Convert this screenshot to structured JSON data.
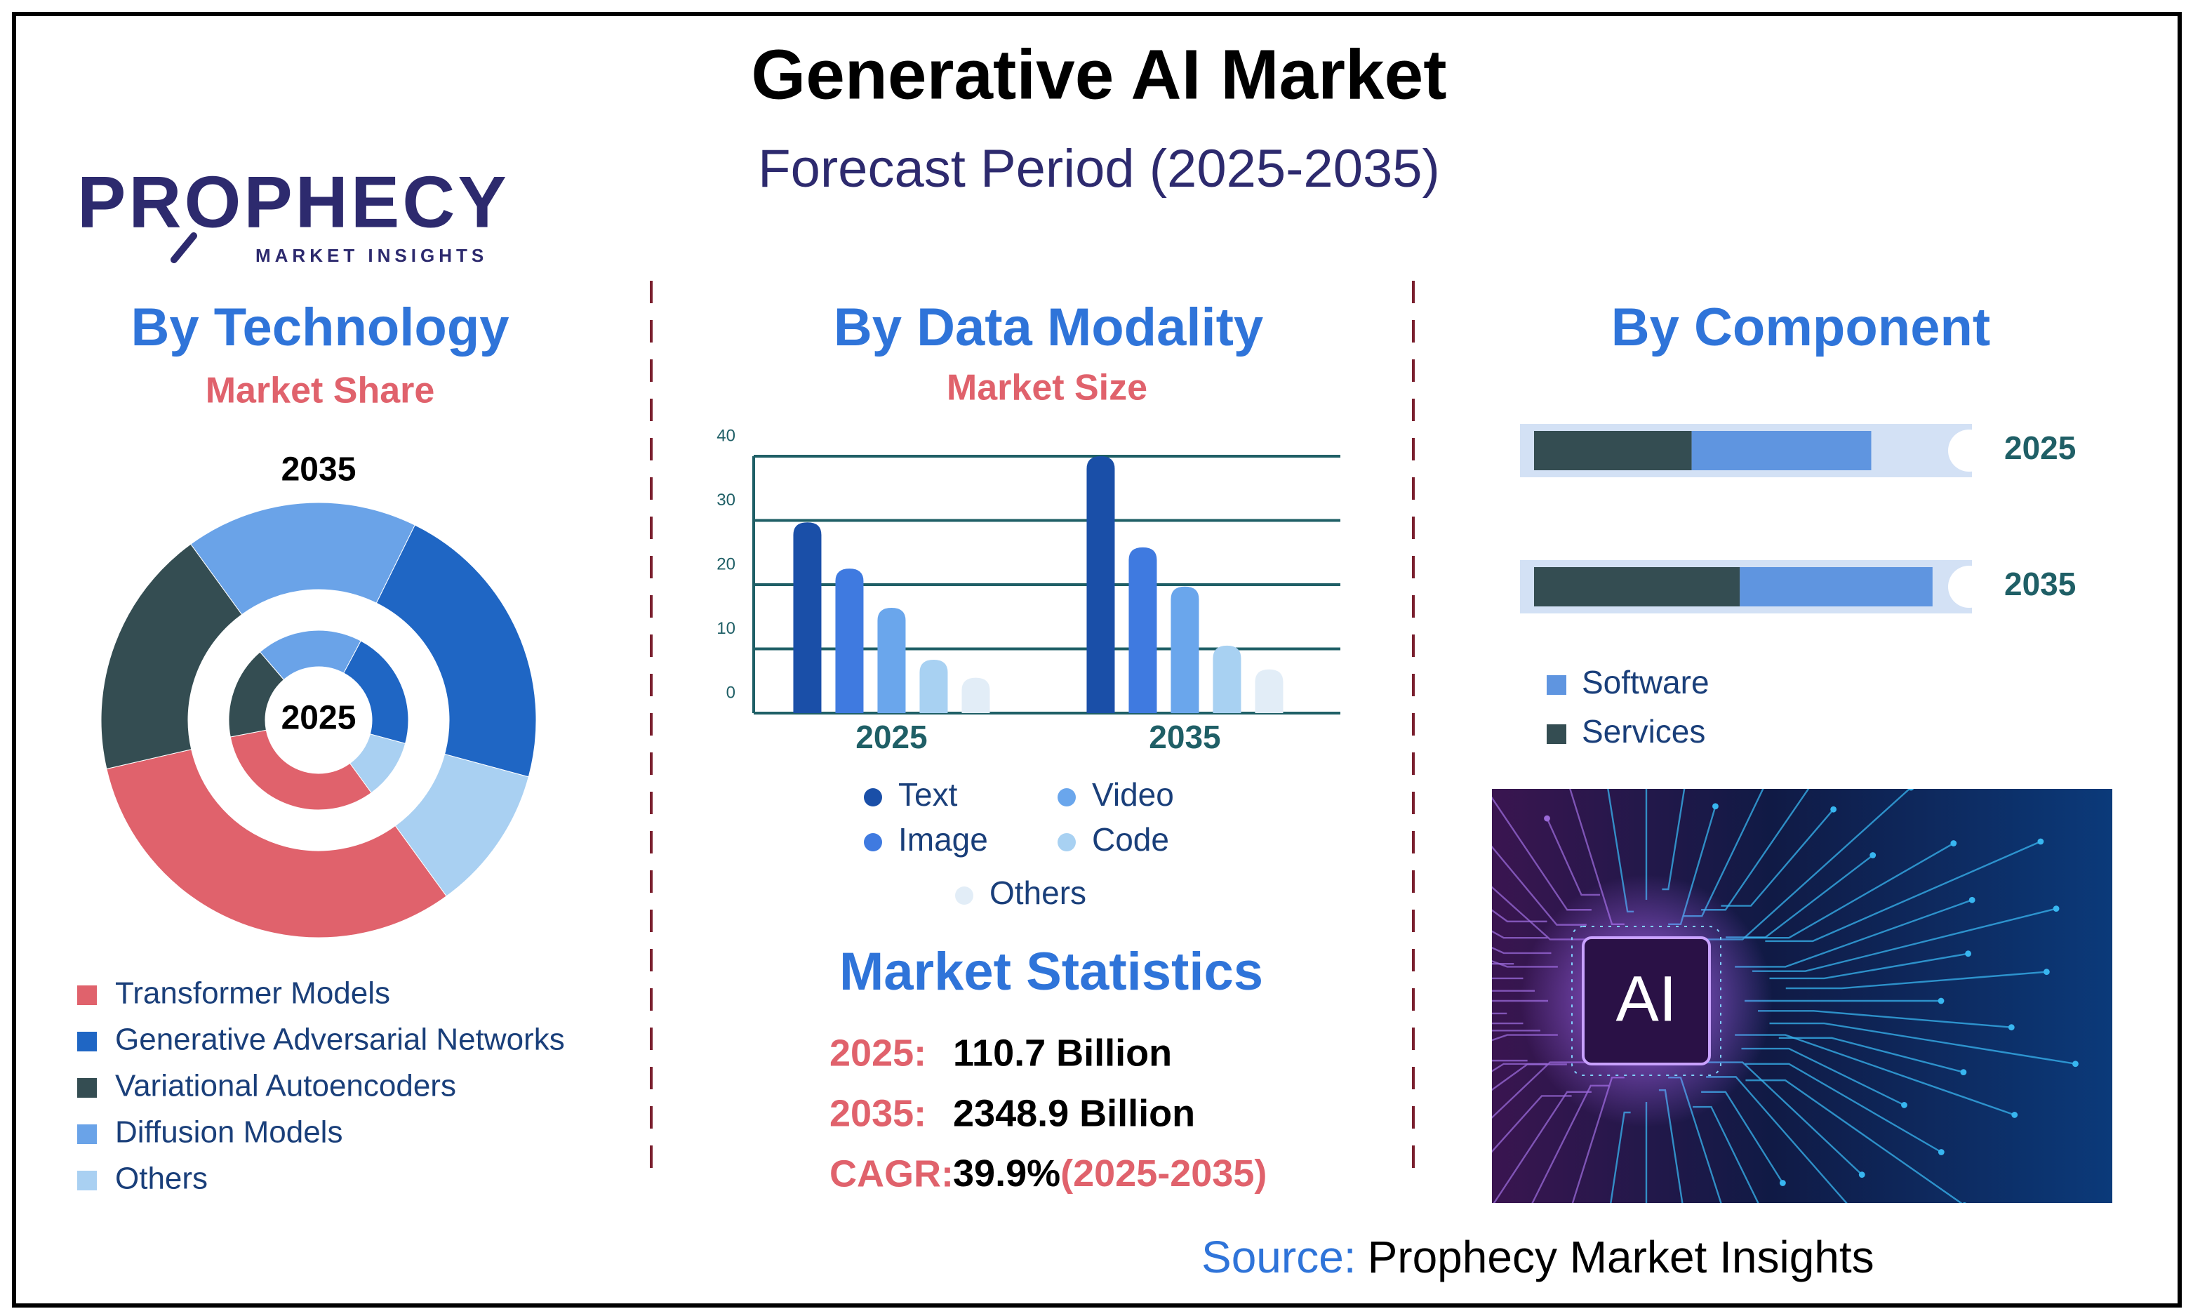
{
  "header": {
    "title": "Generative AI Market",
    "subtitle": "Forecast Period (2025-2035)"
  },
  "logo": {
    "name": "PROPHECY",
    "tagline": "MARKET INSIGHTS"
  },
  "chart_data": [
    {
      "type": "donut",
      "title": "By Technology",
      "subtitle": "Market Share",
      "categories": [
        "Transformer Models",
        "Generative Adversarial Networks",
        "Variational Autoencoders",
        "Diffusion Models",
        "Others"
      ],
      "colors": [
        "#e0626c",
        "#1f66c4",
        "#344d52",
        "#6aa3e8",
        "#a9d0f2"
      ],
      "series": [
        {
          "name": "2035",
          "values": [
            31.4,
            21.9,
            18.6,
            17.3,
            10.8
          ]
        },
        {
          "name": "2025",
          "values": [
            32.0,
            21.4,
            16.7,
            19.1,
            10.8
          ]
        }
      ]
    },
    {
      "type": "bar",
      "title": "By Data Modality",
      "subtitle": "Market Size",
      "categories": [
        "2025",
        "2035"
      ],
      "ylim": [
        0,
        40
      ],
      "yticks": [
        0,
        10,
        20,
        30,
        40
      ],
      "grid": true,
      "series": [
        {
          "name": "Text",
          "color": "#1a4fa8",
          "values": [
            29.7,
            40
          ]
        },
        {
          "name": "Image",
          "color": "#3f7ae0",
          "values": [
            22.5,
            25.8
          ]
        },
        {
          "name": "Video",
          "color": "#6aa6ec",
          "values": [
            16.4,
            19.7
          ]
        },
        {
          "name": "Code",
          "color": "#a8d1f2",
          "values": [
            8.3,
            10.5
          ]
        },
        {
          "name": "Others",
          "color": "#e2edf7",
          "values": [
            5.5,
            6.8
          ]
        }
      ]
    },
    {
      "type": "stacked-hbar",
      "title": "By Component",
      "categories": [
        "2025",
        "2035"
      ],
      "xlim": [
        0,
        100
      ],
      "series": [
        {
          "name": "Software",
          "color": "#5f95e0",
          "values": [
            41,
            44
          ]
        },
        {
          "name": "Services",
          "color": "#344d52",
          "values": [
            36,
            47
          ]
        }
      ]
    }
  ],
  "statistics": {
    "title": "Market Statistics",
    "rows": [
      {
        "label": "2025:",
        "value": "110.7 Billion"
      },
      {
        "label": "2035:",
        "value": "2348.9 Billion"
      },
      {
        "label": "CAGR:",
        "value": "39.9%",
        "note": "(2025-2035)"
      }
    ]
  },
  "image_label": "AI",
  "source": {
    "label": "Source:",
    "text": "Prophecy Market Insights"
  }
}
